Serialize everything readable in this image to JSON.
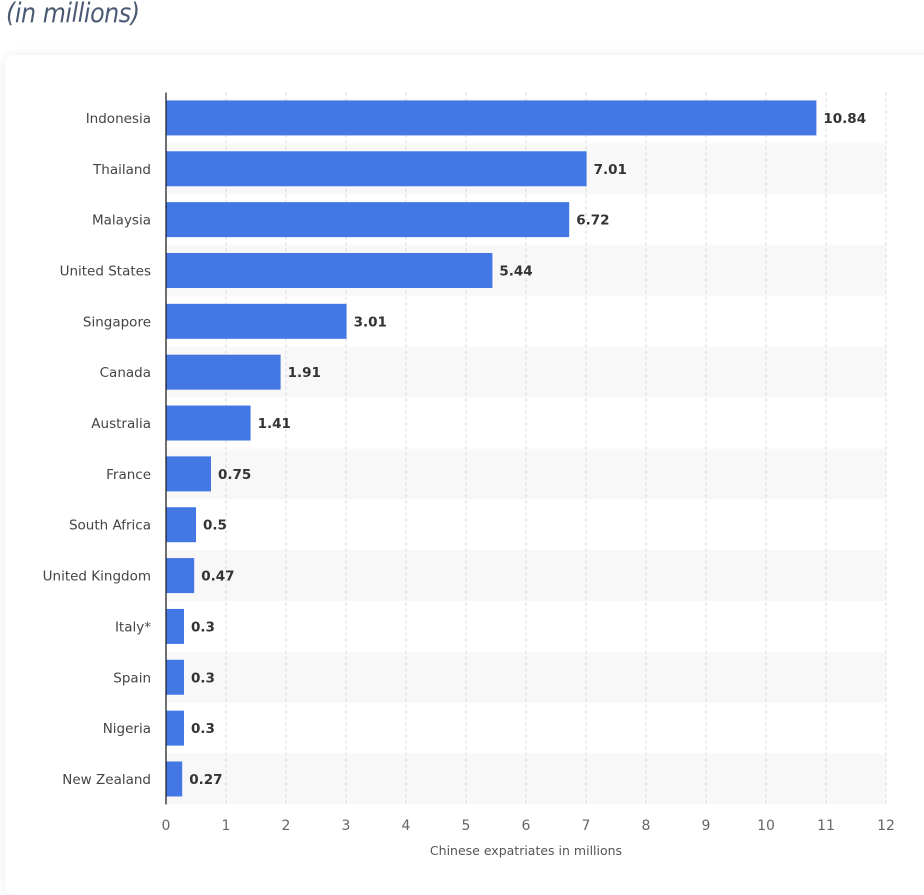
{
  "header": {
    "subtitle": "(in millions)"
  },
  "chart_data": {
    "type": "bar",
    "orientation": "horizontal",
    "categories": [
      "Indonesia",
      "Thailand",
      "Malaysia",
      "United States",
      "Singapore",
      "Canada",
      "Australia",
      "France",
      "South Africa",
      "United Kingdom",
      "Italy*",
      "Spain",
      "Nigeria",
      "New Zealand"
    ],
    "values": [
      10.84,
      7.01,
      6.72,
      5.44,
      3.01,
      1.91,
      1.41,
      0.75,
      0.5,
      0.47,
      0.3,
      0.3,
      0.3,
      0.27
    ],
    "value_labels": [
      "10.84",
      "7.01",
      "6.72",
      "5.44",
      "3.01",
      "1.91",
      "1.41",
      "0.75",
      "0.5",
      "0.47",
      "0.3",
      "0.3",
      "0.3",
      "0.27"
    ],
    "xlabel": "Chinese expatriates in millions",
    "ylabel": "",
    "xlim": [
      0,
      12
    ],
    "xticks": [
      "0",
      "1",
      "2",
      "3",
      "4",
      "5",
      "6",
      "7",
      "8",
      "9",
      "10",
      "11",
      "12"
    ],
    "grid": true,
    "bar_color": "#4377e4"
  }
}
